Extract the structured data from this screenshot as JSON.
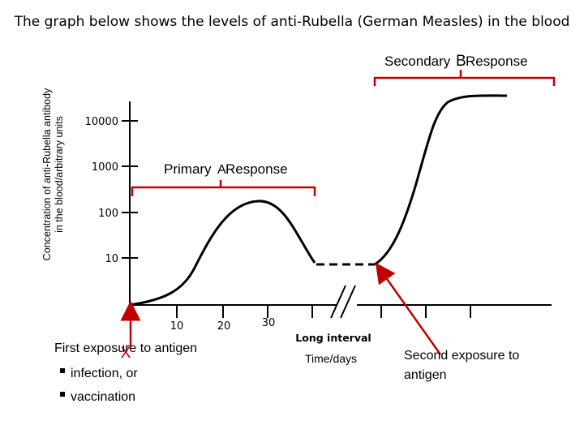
{
  "header": {
    "title": "The graph below shows the levels of anti-Rubella (German Measles) in the blood"
  },
  "chart_data": {
    "type": "line",
    "title": "The graph below shows the levels of anti-Rubella (German Measles) in the blood",
    "ylabel": [
      "Concentration of anti-Rubella antibody",
      "in the blood/arbitrary units"
    ],
    "xlabel": "Time/days",
    "y_scale": "log",
    "y_ticks": [
      "10000",
      "1000",
      "100",
      "10"
    ],
    "x_ticks": [
      "10",
      "20",
      "30"
    ],
    "axis_break_label": "Long interval",
    "series": [
      {
        "points": [
          {
            "x": 0,
            "y": 0.5
          },
          {
            "x": 5,
            "y": 1.2
          },
          {
            "x": 10,
            "y": 6
          },
          {
            "x": 15,
            "y": 45
          },
          {
            "x": 20,
            "y": 130
          },
          {
            "x": 24,
            "y": 150
          },
          {
            "x": 28,
            "y": 70
          },
          {
            "x": 32,
            "y": 15
          }
        ]
      }
    ],
    "secondary_response": [
      {
        "y": 15
      },
      {
        "y": 100
      },
      {
        "y": 2000
      },
      {
        "y": 15000
      },
      {
        "y": 25000
      }
    ]
  },
  "annotations": {
    "primary_label_1": "Primary",
    "primary_letter": "A",
    "primary_label_2": "Response",
    "secondary_label_1": "Secondary",
    "secondary_letter": "B",
    "secondary_label_2": "Response",
    "first_exposure": "First exposure to antigen",
    "first_marker": "X",
    "bullet_1": "infection, or",
    "bullet_2": "vaccination",
    "second_exposure_1": "Second exposure to",
    "second_exposure_2": "antigen"
  },
  "colors": {
    "arrow": "#c00000",
    "line": "#000000",
    "bracket": "#c00000"
  }
}
